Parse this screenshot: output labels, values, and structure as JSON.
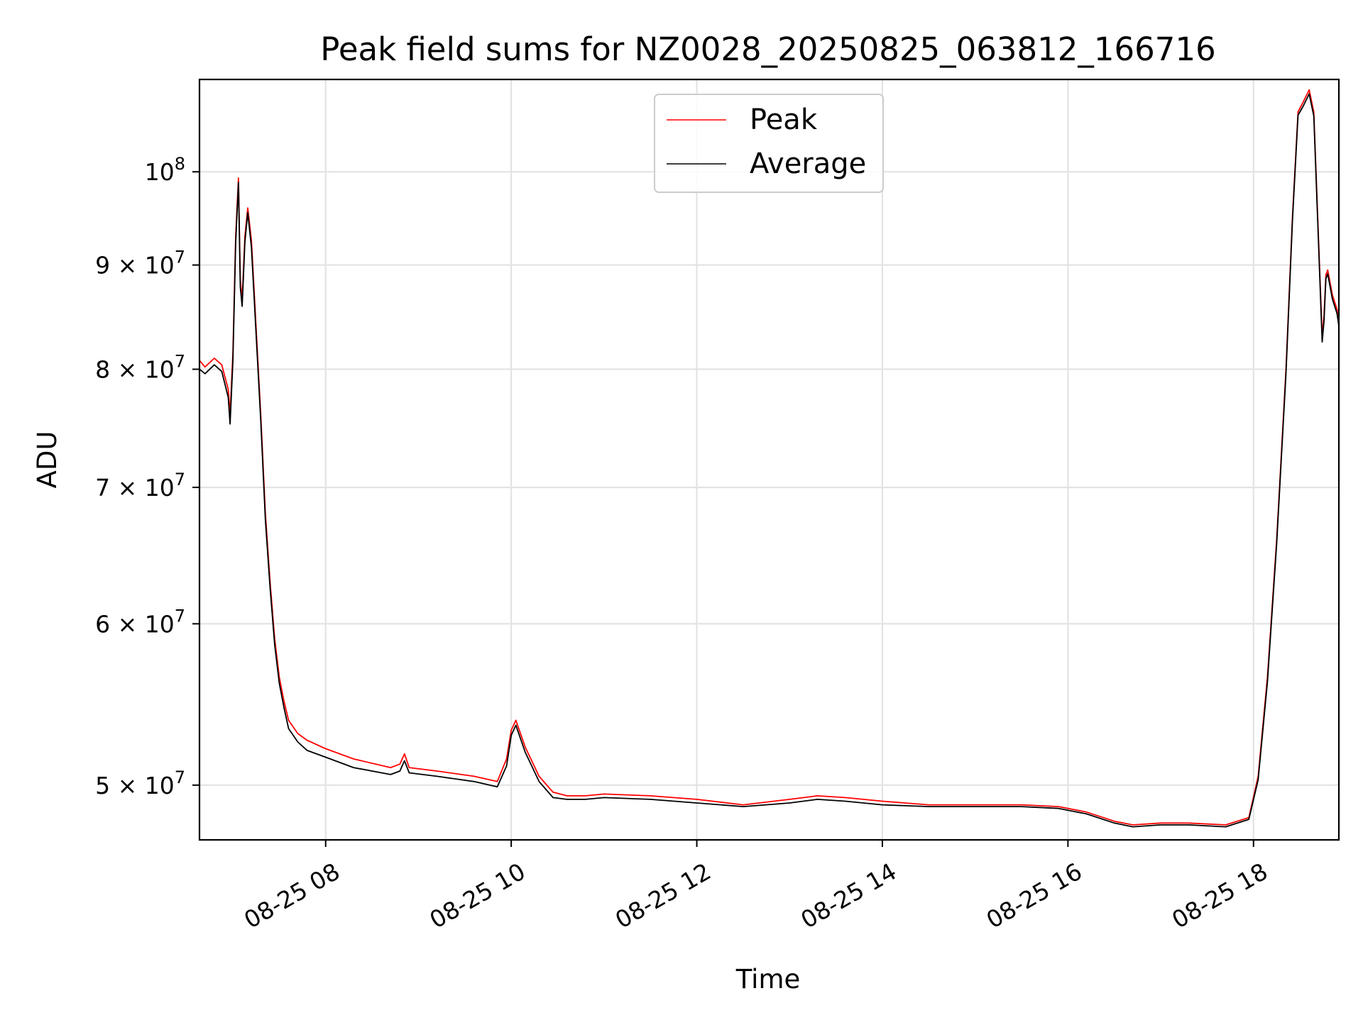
{
  "chart_data": {
    "type": "line",
    "title": "Peak field sums for NZ0028_20250825_063812_166716",
    "xlabel": "Time",
    "ylabel": "ADU",
    "x_unit": "hours (time of day, 2025-08-25)",
    "xlim": [
      6.64,
      18.92
    ],
    "ylim": [
      47000000,
      111000000
    ],
    "yscale": "log",
    "grid": true,
    "legend_position": "top-center",
    "x_ticks": [
      {
        "value": 8,
        "label": "08-25 08"
      },
      {
        "value": 10,
        "label": "08-25 10"
      },
      {
        "value": 12,
        "label": "08-25 12"
      },
      {
        "value": 14,
        "label": "08-25 14"
      },
      {
        "value": 16,
        "label": "08-25 16"
      },
      {
        "value": 18,
        "label": "08-25 18"
      }
    ],
    "y_ticks": [
      {
        "value": 50000000,
        "mantissa": "5",
        "exponent": "7"
      },
      {
        "value": 60000000,
        "mantissa": "6",
        "exponent": "7"
      },
      {
        "value": 70000000,
        "mantissa": "7",
        "exponent": "7"
      },
      {
        "value": 80000000,
        "mantissa": "8",
        "exponent": "7"
      },
      {
        "value": 90000000,
        "mantissa": "9",
        "exponent": "7"
      },
      {
        "value": 100000000,
        "mantissa": "",
        "exponent": "8"
      }
    ],
    "times_symbol": "×",
    "y_tick_base": "10",
    "series": [
      {
        "name": "Peak",
        "color": "#ff0000",
        "x": [
          6.64,
          6.7,
          6.8,
          6.88,
          6.95,
          6.97,
          7.0,
          7.03,
          7.06,
          7.08,
          7.1,
          7.13,
          7.16,
          7.2,
          7.3,
          7.35,
          7.4,
          7.45,
          7.5,
          7.55,
          7.6,
          7.7,
          7.8,
          8.0,
          8.3,
          8.7,
          8.8,
          8.85,
          8.9,
          9.2,
          9.6,
          9.85,
          9.95,
          10.0,
          10.05,
          10.15,
          10.3,
          10.45,
          10.6,
          10.8,
          11.0,
          11.5,
          12.0,
          12.5,
          13.0,
          13.3,
          13.6,
          14.0,
          14.5,
          15.0,
          15.5,
          15.9,
          16.2,
          16.5,
          16.7,
          17.0,
          17.3,
          17.7,
          17.95,
          18.05,
          18.15,
          18.25,
          18.35,
          18.42,
          18.48,
          18.54,
          18.6,
          18.65,
          18.7,
          18.74,
          18.76,
          18.78,
          18.8,
          18.85,
          18.9,
          18.92
        ],
        "y": [
          80800000,
          80200000,
          81000000,
          80400000,
          78200000,
          76000000,
          81500000,
          93000000,
          99300000,
          88500000,
          86500000,
          93000000,
          96000000,
          92500000,
          76000000,
          68000000,
          63000000,
          59000000,
          56500000,
          55000000,
          53800000,
          53000000,
          52600000,
          52100000,
          51500000,
          51000000,
          51200000,
          51800000,
          51000000,
          50800000,
          50500000,
          50200000,
          51500000,
          53200000,
          53800000,
          52200000,
          50500000,
          49600000,
          49400000,
          49400000,
          49500000,
          49400000,
          49200000,
          48900000,
          49200000,
          49400000,
          49300000,
          49100000,
          48900000,
          48900000,
          48900000,
          48800000,
          48500000,
          48000000,
          47800000,
          47900000,
          47900000,
          47800000,
          48200000,
          50500000,
          56500000,
          66000000,
          80000000,
          95000000,
          107000000,
          108300000,
          109700000,
          107000000,
          93000000,
          83000000,
          85000000,
          89000000,
          89500000,
          87000000,
          85600000,
          84500000
        ]
      },
      {
        "name": "Average",
        "color": "#000000",
        "x": [
          6.64,
          6.7,
          6.8,
          6.88,
          6.95,
          6.97,
          7.0,
          7.03,
          7.06,
          7.08,
          7.1,
          7.13,
          7.16,
          7.2,
          7.3,
          7.35,
          7.4,
          7.45,
          7.5,
          7.55,
          7.6,
          7.7,
          7.8,
          8.0,
          8.3,
          8.7,
          8.8,
          8.85,
          8.9,
          9.2,
          9.6,
          9.85,
          9.95,
          10.0,
          10.05,
          10.15,
          10.3,
          10.45,
          10.6,
          10.8,
          11.0,
          11.5,
          12.0,
          12.5,
          13.0,
          13.3,
          13.6,
          14.0,
          14.5,
          15.0,
          15.5,
          15.9,
          16.2,
          16.5,
          16.7,
          17.0,
          17.3,
          17.7,
          17.95,
          18.05,
          18.15,
          18.25,
          18.35,
          18.42,
          18.48,
          18.54,
          18.6,
          18.65,
          18.7,
          18.74,
          18.76,
          18.78,
          18.8,
          18.85,
          18.9,
          18.92
        ],
        "y": [
          80000000,
          79600000,
          80400000,
          79800000,
          77500000,
          75200000,
          80800000,
          92300000,
          98800000,
          87800000,
          85900000,
          92400000,
          95500000,
          91800000,
          75500000,
          67500000,
          62600000,
          58600000,
          56100000,
          54600000,
          53300000,
          52500000,
          52000000,
          51600000,
          51000000,
          50600000,
          50800000,
          51400000,
          50700000,
          50500000,
          50200000,
          49900000,
          51100000,
          52900000,
          53500000,
          51900000,
          50200000,
          49300000,
          49200000,
          49200000,
          49300000,
          49200000,
          49000000,
          48800000,
          49000000,
          49200000,
          49100000,
          48900000,
          48800000,
          48800000,
          48800000,
          48700000,
          48400000,
          47900000,
          47700000,
          47800000,
          47800000,
          47700000,
          48100000,
          50300000,
          56200000,
          65700000,
          79600000,
          94600000,
          106600000,
          107800000,
          109200000,
          106500000,
          92500000,
          82500000,
          84500000,
          88600000,
          89100000,
          86600000,
          85200000,
          84000000
        ]
      }
    ]
  }
}
